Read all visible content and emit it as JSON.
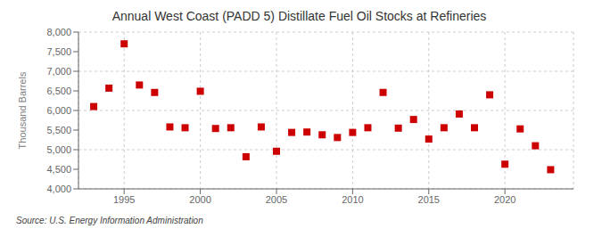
{
  "chart_data": {
    "type": "scatter",
    "title": "Annual West Coast (PADD 5) Distillate Fuel Oil Stocks at Refineries",
    "ylabel": "Thousand Barrels",
    "source": "Source: U.S. Energy Information Administration",
    "x": [
      1993,
      1994,
      1995,
      1996,
      1997,
      1998,
      1999,
      2000,
      2001,
      2002,
      2003,
      2004,
      2005,
      2006,
      2007,
      2008,
      2009,
      2010,
      2011,
      2012,
      2013,
      2014,
      2015,
      2016,
      2017,
      2018,
      2019,
      2020,
      2021,
      2022,
      2023
    ],
    "values": [
      6100,
      6570,
      7700,
      6650,
      6460,
      5580,
      5560,
      6490,
      5540,
      5560,
      4820,
      5580,
      4960,
      5440,
      5450,
      5380,
      5310,
      5440,
      5560,
      6460,
      5550,
      5770,
      5270,
      5560,
      5910,
      5560,
      6400,
      4630,
      5530,
      5100,
      4490
    ],
    "xlim": [
      1992,
      2024.5
    ],
    "xticks": [
      1995,
      2000,
      2005,
      2010,
      2015,
      2020
    ],
    "ylim": [
      4000,
      8000
    ],
    "yticks": [
      {
        "value": 4000,
        "label": "4,000"
      },
      {
        "value": 4500,
        "label": "4,500"
      },
      {
        "value": 5000,
        "label": "5,000"
      },
      {
        "value": 5500,
        "label": "5,500"
      },
      {
        "value": 6000,
        "label": "6,000"
      },
      {
        "value": 6500,
        "label": "6,500"
      },
      {
        "value": 7000,
        "label": "7,000"
      },
      {
        "value": 7500,
        "label": "7,500"
      },
      {
        "value": 8000,
        "label": "8,000"
      }
    ],
    "color": "#cc0000",
    "marker": "square",
    "grid": true
  }
}
